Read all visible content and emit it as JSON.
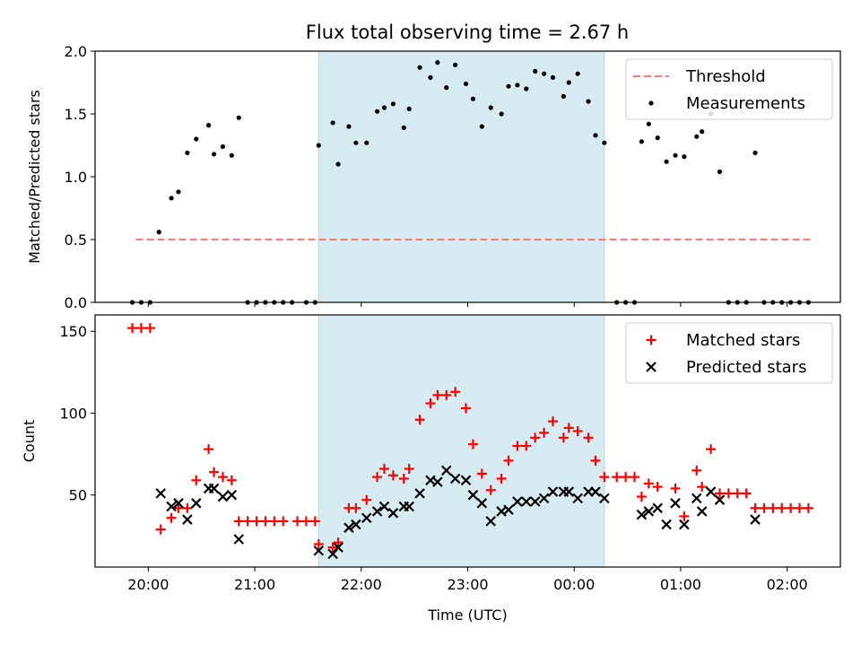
{
  "figure": {
    "title": "Flux total observing time = 2.67 h",
    "colors": {
      "threshold": "#ff7777",
      "matched": "#ff0000",
      "predicted": "#000000",
      "span": "#add8e6"
    }
  },
  "chart_data": [
    {
      "type": "scatter",
      "title": "Flux total observing time = 2.67 h",
      "xlabel": "",
      "ylabel": "Matched/Predicted stars",
      "xlim": [
        "19:30",
        "02:30"
      ],
      "ylim": [
        0,
        2.0
      ],
      "yticks": [
        0.0,
        0.5,
        1.0,
        1.5,
        2.0
      ],
      "ytick_labels": [
        "0.0",
        "0.5",
        "1.0",
        "1.5",
        "2.0"
      ],
      "shaded_span": [
        "21:36",
        "00:17"
      ],
      "legend": {
        "placement": "top-right",
        "entries": [
          "Threshold",
          "Measurements"
        ]
      },
      "threshold": {
        "name": "Threshold",
        "y": 0.5,
        "x_range": [
          "19:53",
          "02:14"
        ]
      },
      "series": [
        {
          "name": "Measurements",
          "points": [
            [
              "19:51",
              0
            ],
            [
              "19:56",
              0
            ],
            [
              "20:01",
              0
            ],
            [
              "20:06",
              0.56
            ],
            [
              "20:13",
              0.83
            ],
            [
              "20:17",
              0.88
            ],
            [
              "20:22",
              1.19
            ],
            [
              "20:27",
              1.3
            ],
            [
              "20:34",
              1.41
            ],
            [
              "20:37",
              1.18
            ],
            [
              "20:42",
              1.24
            ],
            [
              "20:47",
              1.17
            ],
            [
              "20:51",
              1.47
            ],
            [
              "20:56",
              0
            ],
            [
              "21:01",
              0
            ],
            [
              "21:06",
              0
            ],
            [
              "21:11",
              0
            ],
            [
              "21:16",
              0
            ],
            [
              "21:21",
              0
            ],
            [
              "21:29",
              0
            ],
            [
              "21:34",
              0
            ],
            [
              "21:36",
              1.25
            ],
            [
              "21:44",
              1.43
            ],
            [
              "21:47",
              1.1
            ],
            [
              "21:53",
              1.4
            ],
            [
              "21:57",
              1.27
            ],
            [
              "22:03",
              1.27
            ],
            [
              "22:09",
              1.52
            ],
            [
              "22:13",
              1.55
            ],
            [
              "22:18",
              1.58
            ],
            [
              "22:24",
              1.39
            ],
            [
              "22:27",
              1.54
            ],
            [
              "22:33",
              1.87
            ],
            [
              "22:39",
              1.79
            ],
            [
              "22:43",
              1.91
            ],
            [
              "22:48",
              1.71
            ],
            [
              "22:53",
              1.89
            ],
            [
              "22:59",
              1.74
            ],
            [
              "23:03",
              1.62
            ],
            [
              "23:08",
              1.4
            ],
            [
              "23:13",
              1.55
            ],
            [
              "23:19",
              1.5
            ],
            [
              "23:23",
              1.72
            ],
            [
              "23:28",
              1.73
            ],
            [
              "23:33",
              1.7
            ],
            [
              "23:38",
              1.84
            ],
            [
              "23:43",
              1.82
            ],
            [
              "23:48",
              1.79
            ],
            [
              "23:54",
              1.64
            ],
            [
              "23:57",
              1.75
            ],
            [
              "00:02",
              1.82
            ],
            [
              "00:08",
              1.6
            ],
            [
              "00:12",
              1.33
            ],
            [
              "00:17",
              1.27
            ],
            [
              "00:24",
              0
            ],
            [
              "00:29",
              0
            ],
            [
              "00:34",
              0
            ],
            [
              "00:38",
              1.28
            ],
            [
              "00:42",
              1.42
            ],
            [
              "00:47",
              1.31
            ],
            [
              "00:52",
              1.12
            ],
            [
              "00:57",
              1.17
            ],
            [
              "01:02",
              1.16
            ],
            [
              "01:09",
              1.32
            ],
            [
              "01:12",
              1.36
            ],
            [
              "01:17",
              1.5
            ],
            [
              "01:22",
              1.04
            ],
            [
              "01:27",
              0
            ],
            [
              "01:32",
              0
            ],
            [
              "01:37",
              0
            ],
            [
              "01:42",
              1.19
            ],
            [
              "01:47",
              0
            ],
            [
              "01:52",
              0
            ],
            [
              "01:57",
              0
            ],
            [
              "02:02",
              0
            ],
            [
              "02:07",
              0
            ],
            [
              "02:12",
              0
            ]
          ]
        }
      ]
    },
    {
      "type": "scatter",
      "title": "",
      "xlabel": "Time (UTC)",
      "ylabel": "Count",
      "xlim": [
        "19:30",
        "02:30"
      ],
      "ylim": [
        6,
        160
      ],
      "yticks": [
        50,
        100,
        150
      ],
      "xticks": [
        "20:00",
        "21:00",
        "22:00",
        "23:00",
        "00:00",
        "01:00",
        "02:00"
      ],
      "shaded_span": [
        "21:36",
        "00:17"
      ],
      "legend": {
        "placement": "top-right",
        "entries": [
          "Matched stars",
          "Predicted stars"
        ]
      },
      "series": [
        {
          "name": "Matched stars",
          "marker": "plus",
          "points": [
            [
              "19:51",
              152
            ],
            [
              "19:56",
              152
            ],
            [
              "20:01",
              152
            ],
            [
              "20:07",
              29
            ],
            [
              "20:13",
              36
            ],
            [
              "20:17",
              42
            ],
            [
              "20:22",
              42
            ],
            [
              "20:27",
              59
            ],
            [
              "20:34",
              78
            ],
            [
              "20:37",
              64
            ],
            [
              "20:42",
              61
            ],
            [
              "20:47",
              59
            ],
            [
              "20:51",
              34
            ],
            [
              "20:56",
              34
            ],
            [
              "21:01",
              34
            ],
            [
              "21:06",
              34
            ],
            [
              "21:11",
              34
            ],
            [
              "21:16",
              34
            ],
            [
              "21:24",
              34
            ],
            [
              "21:29",
              34
            ],
            [
              "21:34",
              34
            ],
            [
              "21:36",
              20
            ],
            [
              "21:44",
              18
            ],
            [
              "21:47",
              21
            ],
            [
              "21:53",
              42
            ],
            [
              "21:57",
              42
            ],
            [
              "22:03",
              47
            ],
            [
              "22:09",
              61
            ],
            [
              "22:13",
              66
            ],
            [
              "22:18",
              62
            ],
            [
              "22:24",
              60
            ],
            [
              "22:27",
              66
            ],
            [
              "22:33",
              96
            ],
            [
              "22:39",
              106
            ],
            [
              "22:43",
              111
            ],
            [
              "22:48",
              111
            ],
            [
              "22:53",
              113
            ],
            [
              "22:59",
              103
            ],
            [
              "23:03",
              81
            ],
            [
              "23:08",
              63
            ],
            [
              "23:13",
              53
            ],
            [
              "23:19",
              60
            ],
            [
              "23:23",
              71
            ],
            [
              "23:28",
              80
            ],
            [
              "23:33",
              80
            ],
            [
              "23:38",
              85
            ],
            [
              "23:43",
              88
            ],
            [
              "23:48",
              95
            ],
            [
              "23:54",
              85
            ],
            [
              "23:57",
              91
            ],
            [
              "00:02",
              89
            ],
            [
              "00:08",
              85
            ],
            [
              "00:12",
              71
            ],
            [
              "00:17",
              61
            ],
            [
              "00:24",
              61
            ],
            [
              "00:29",
              61
            ],
            [
              "00:34",
              61
            ],
            [
              "00:38",
              49
            ],
            [
              "00:42",
              57
            ],
            [
              "00:47",
              55
            ],
            [
              "00:57",
              54
            ],
            [
              "01:02",
              37
            ],
            [
              "01:09",
              65
            ],
            [
              "01:12",
              55
            ],
            [
              "01:17",
              78
            ],
            [
              "01:22",
              51
            ],
            [
              "01:27",
              51
            ],
            [
              "01:32",
              51
            ],
            [
              "01:37",
              51
            ],
            [
              "01:42",
              42
            ],
            [
              "01:47",
              42
            ],
            [
              "01:52",
              42
            ],
            [
              "01:57",
              42
            ],
            [
              "02:02",
              42
            ],
            [
              "02:07",
              42
            ],
            [
              "02:12",
              42
            ]
          ]
        },
        {
          "name": "Predicted stars",
          "marker": "x",
          "points": [
            [
              "20:07",
              51
            ],
            [
              "20:13",
              43
            ],
            [
              "20:17",
              45
            ],
            [
              "20:22",
              35
            ],
            [
              "20:27",
              45
            ],
            [
              "20:34",
              54
            ],
            [
              "20:37",
              54
            ],
            [
              "20:42",
              49
            ],
            [
              "20:47",
              50
            ],
            [
              "20:51",
              23
            ],
            [
              "21:36",
              16
            ],
            [
              "21:44",
              14
            ],
            [
              "21:47",
              18
            ],
            [
              "21:53",
              30
            ],
            [
              "21:57",
              32
            ],
            [
              "22:03",
              36
            ],
            [
              "22:09",
              40
            ],
            [
              "22:13",
              43
            ],
            [
              "22:18",
              39
            ],
            [
              "22:24",
              43
            ],
            [
              "22:27",
              43
            ],
            [
              "22:33",
              51
            ],
            [
              "22:39",
              59
            ],
            [
              "22:43",
              58
            ],
            [
              "22:48",
              65
            ],
            [
              "22:53",
              60
            ],
            [
              "22:59",
              59
            ],
            [
              "23:03",
              50
            ],
            [
              "23:08",
              45
            ],
            [
              "23:13",
              34
            ],
            [
              "23:19",
              40
            ],
            [
              "23:23",
              41
            ],
            [
              "23:28",
              46
            ],
            [
              "23:33",
              46
            ],
            [
              "23:38",
              46
            ],
            [
              "23:43",
              48
            ],
            [
              "23:48",
              52
            ],
            [
              "23:54",
              52
            ],
            [
              "23:57",
              52
            ],
            [
              "00:02",
              48
            ],
            [
              "00:08",
              52
            ],
            [
              "00:12",
              52
            ],
            [
              "00:17",
              48
            ],
            [
              "00:38",
              38
            ],
            [
              "00:42",
              40
            ],
            [
              "00:47",
              42
            ],
            [
              "00:52",
              32
            ],
            [
              "00:57",
              45
            ],
            [
              "01:02",
              32
            ],
            [
              "01:09",
              48
            ],
            [
              "01:12",
              40
            ],
            [
              "01:17",
              52
            ],
            [
              "01:22",
              47
            ],
            [
              "01:42",
              35
            ]
          ]
        }
      ]
    }
  ]
}
